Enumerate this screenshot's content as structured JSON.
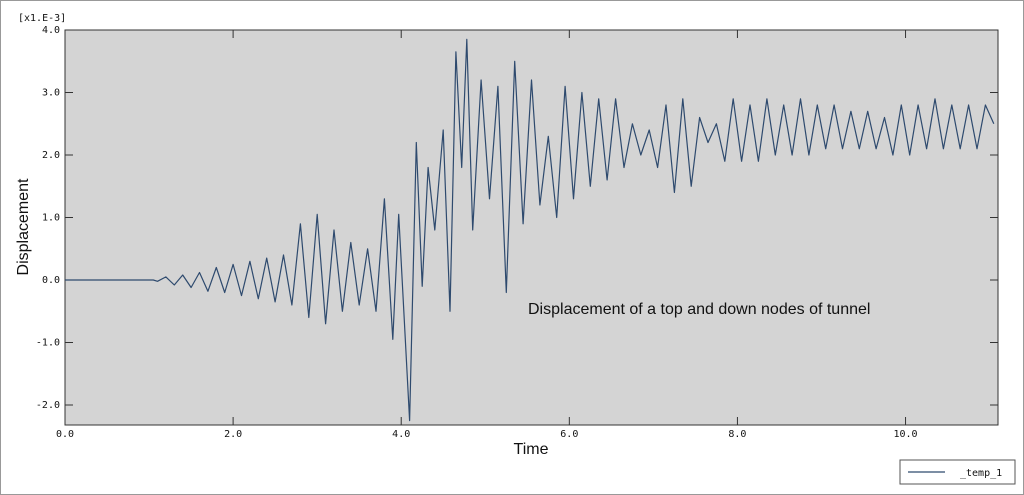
{
  "chart_data": {
    "type": "line",
    "scale_note": "[x1.E-3]",
    "xlabel": "Time",
    "ylabel": "Displacement",
    "annotation": "Displacement of a top and down nodes of tunnel",
    "xlim": [
      0,
      11.1
    ],
    "ylim": [
      -2.32,
      4.0
    ],
    "xticks": [
      {
        "value": 0,
        "label": "0.0"
      },
      {
        "value": 2,
        "label": "2.0"
      },
      {
        "value": 4,
        "label": "4.0"
      },
      {
        "value": 6,
        "label": "6.0"
      },
      {
        "value": 8,
        "label": "8.0"
      },
      {
        "value": 10,
        "label": "10.0"
      }
    ],
    "yticks": [
      {
        "value": -2,
        "label": "-2.0"
      },
      {
        "value": -1,
        "label": "-1.0"
      },
      {
        "value": 0,
        "label": "0.0"
      },
      {
        "value": 1,
        "label": "1.0"
      },
      {
        "value": 2,
        "label": "2.0"
      },
      {
        "value": 3,
        "label": "3.0"
      },
      {
        "value": 4,
        "label": "4.0"
      }
    ],
    "legend": "bottom-right",
    "x": [
      0,
      1.05,
      1.1,
      1.2,
      1.3,
      1.4,
      1.5,
      1.6,
      1.7,
      1.8,
      1.9,
      2.0,
      2.1,
      2.2,
      2.3,
      2.4,
      2.5,
      2.6,
      2.7,
      2.8,
      2.9,
      3.0,
      3.1,
      3.2,
      3.3,
      3.4,
      3.5,
      3.6,
      3.7,
      3.8,
      3.9,
      3.97,
      4.1,
      4.18,
      4.25,
      4.32,
      4.4,
      4.5,
      4.58,
      4.65,
      4.72,
      4.78,
      4.85,
      4.95,
      5.05,
      5.15,
      5.25,
      5.35,
      5.45,
      5.55,
      5.65,
      5.75,
      5.85,
      5.95,
      6.05,
      6.15,
      6.25,
      6.35,
      6.45,
      6.55,
      6.65,
      6.75,
      6.85,
      6.95,
      7.05,
      7.15,
      7.25,
      7.35,
      7.45,
      7.55,
      7.65,
      7.75,
      7.85,
      7.95,
      8.05,
      8.15,
      8.25,
      8.35,
      8.45,
      8.55,
      8.65,
      8.75,
      8.85,
      8.95,
      9.05,
      9.15,
      9.25,
      9.35,
      9.45,
      9.55,
      9.65,
      9.75,
      9.85,
      9.95,
      10.05,
      10.15,
      10.25,
      10.35,
      10.45,
      10.55,
      10.65,
      10.75,
      10.85,
      10.95,
      11.05
    ],
    "series": [
      {
        "name": "_temp_1",
        "color": "#2e4a6e",
        "values": [
          0,
          0,
          -0.02,
          0.05,
          -0.08,
          0.08,
          -0.12,
          0.12,
          -0.18,
          0.2,
          -0.2,
          0.25,
          -0.25,
          0.3,
          -0.3,
          0.35,
          -0.35,
          0.4,
          -0.4,
          0.9,
          -0.6,
          1.05,
          -0.7,
          0.8,
          -0.5,
          0.6,
          -0.4,
          0.5,
          -0.5,
          1.3,
          -0.95,
          1.05,
          -2.25,
          2.2,
          -0.1,
          1.8,
          0.8,
          2.4,
          -0.5,
          3.65,
          1.8,
          3.85,
          0.8,
          3.2,
          1.3,
          3.1,
          -0.2,
          3.5,
          0.9,
          3.2,
          1.2,
          2.3,
          1.0,
          3.1,
          1.3,
          3.0,
          1.5,
          2.9,
          1.6,
          2.9,
          1.8,
          2.5,
          2.0,
          2.4,
          1.8,
          2.8,
          1.4,
          2.9,
          1.5,
          2.6,
          2.2,
          2.5,
          1.9,
          2.9,
          1.9,
          2.8,
          1.9,
          2.9,
          2.0,
          2.8,
          2.0,
          2.9,
          2.0,
          2.8,
          2.1,
          2.8,
          2.1,
          2.7,
          2.1,
          2.7,
          2.1,
          2.6,
          2.0,
          2.8,
          2.0,
          2.8,
          2.1,
          2.9,
          2.1,
          2.8,
          2.1,
          2.8,
          2.1,
          2.8,
          2.5
        ]
      }
    ]
  }
}
